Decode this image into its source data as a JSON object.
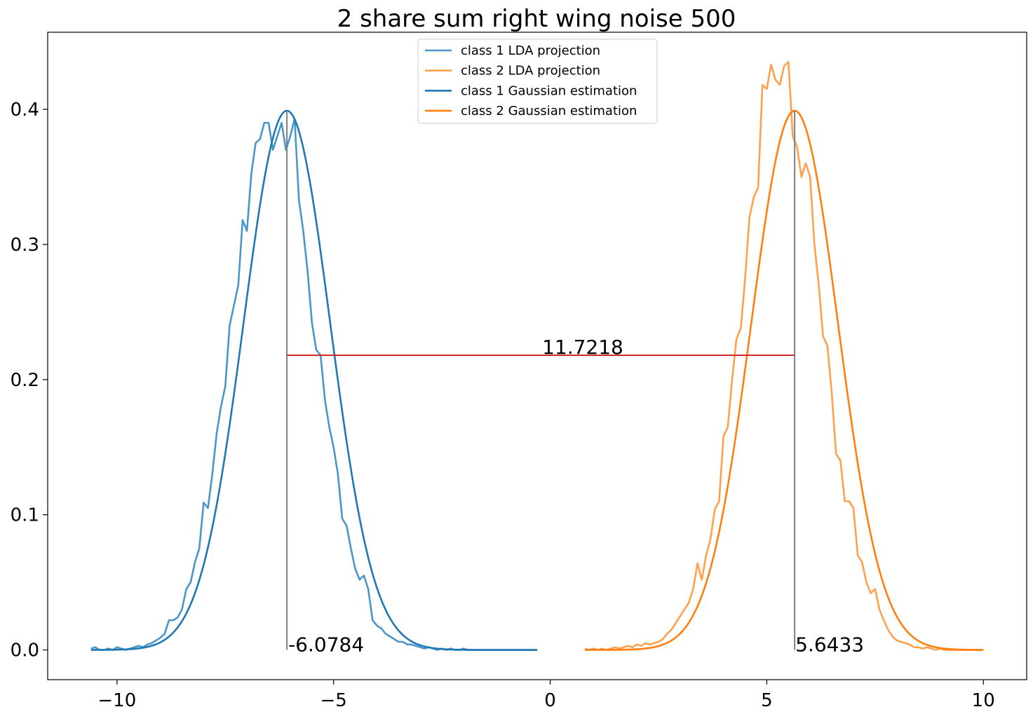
{
  "chart_data": {
    "type": "line",
    "title": "2 share sum right wing noise 500",
    "xlabel": "",
    "ylabel": "",
    "xlim": [
      -11.6,
      11.0
    ],
    "ylim": [
      -0.022,
      0.457
    ],
    "xticks": [
      -10,
      -5,
      0,
      5,
      10
    ],
    "xtick_labels": [
      "−10",
      "−5",
      "0",
      "5",
      "10"
    ],
    "yticks": [
      0.0,
      0.1,
      0.2,
      0.3,
      0.4
    ],
    "ytick_labels": [
      "0.0",
      "0.1",
      "0.2",
      "0.3",
      "0.4"
    ],
    "grid": false,
    "legend_position": "top-center",
    "series": [
      {
        "name": "class 1 LDA projection",
        "color": "#4a96c8",
        "kind": "empirical",
        "x": [
          -10.6,
          -10.5,
          -10.4,
          -10.3,
          -10.2,
          -10.1,
          -10.0,
          -9.9,
          -9.8,
          -9.7,
          -9.6,
          -9.5,
          -9.4,
          -9.3,
          -9.2,
          -9.1,
          -9.0,
          -8.9,
          -8.8,
          -8.7,
          -8.6,
          -8.5,
          -8.4,
          -8.3,
          -8.2,
          -8.1,
          -8.0,
          -7.9,
          -7.8,
          -7.7,
          -7.6,
          -7.5,
          -7.4,
          -7.3,
          -7.2,
          -7.1,
          -7.0,
          -6.9,
          -6.8,
          -6.7,
          -6.6,
          -6.5,
          -6.4,
          -6.3,
          -6.2,
          -6.1,
          -6.0,
          -5.9,
          -5.8,
          -5.7,
          -5.6,
          -5.5,
          -5.4,
          -5.3,
          -5.2,
          -5.1,
          -5.0,
          -4.9,
          -4.8,
          -4.7,
          -4.6,
          -4.5,
          -4.4,
          -4.3,
          -4.2,
          -4.1,
          -4.0,
          -3.9,
          -3.8,
          -3.7,
          -3.6,
          -3.5,
          -3.4,
          -3.3,
          -3.2,
          -3.1,
          -3.0,
          -2.9,
          -2.8,
          -2.7,
          -2.6,
          -2.5,
          -2.4,
          -2.3,
          -2.2,
          -2.1,
          -2.0,
          -1.9,
          -1.8,
          -1.7,
          -1.6,
          -1.5,
          -1.4,
          -1.3,
          -1.2,
          -1.1,
          -1.0,
          -0.9,
          -0.8,
          -0.7,
          -0.6,
          -0.5,
          -0.4,
          -0.3
        ],
        "y": [
          0.001,
          0.002,
          0.0,
          0.0,
          0.001,
          0.0,
          0.002,
          0.001,
          0.0,
          0.001,
          0.002,
          0.003,
          0.002,
          0.004,
          0.005,
          0.007,
          0.009,
          0.012,
          0.022,
          0.022,
          0.024,
          0.03,
          0.045,
          0.05,
          0.065,
          0.075,
          0.109,
          0.105,
          0.13,
          0.16,
          0.18,
          0.195,
          0.24,
          0.255,
          0.27,
          0.318,
          0.31,
          0.352,
          0.375,
          0.378,
          0.39,
          0.39,
          0.37,
          0.38,
          0.39,
          0.37,
          0.38,
          0.393,
          0.333,
          0.31,
          0.28,
          0.242,
          0.222,
          0.218,
          0.185,
          0.165,
          0.15,
          0.13,
          0.097,
          0.092,
          0.075,
          0.06,
          0.052,
          0.055,
          0.045,
          0.022,
          0.018,
          0.016,
          0.012,
          0.01,
          0.008,
          0.006,
          0.006,
          0.004,
          0.004,
          0.003,
          0.002,
          0.001,
          0.002,
          0.001,
          0.0,
          0.001,
          0.0,
          0.001,
          0.0,
          0.0,
          0.001,
          0.0,
          0.0,
          0.0,
          0.0,
          0.0,
          0.0,
          0.0,
          0.0,
          0.0,
          0.0,
          0.0,
          0.0,
          0.0,
          0.0,
          0.0,
          0.0,
          0.0
        ]
      },
      {
        "name": "class 2 LDA projection",
        "color": "#ffa04c",
        "kind": "empirical",
        "x": [
          0.8,
          0.9,
          1.0,
          1.1,
          1.2,
          1.3,
          1.4,
          1.5,
          1.6,
          1.7,
          1.8,
          1.9,
          2.0,
          2.1,
          2.2,
          2.3,
          2.4,
          2.5,
          2.6,
          2.7,
          2.8,
          2.9,
          3.0,
          3.1,
          3.2,
          3.3,
          3.4,
          3.5,
          3.6,
          3.7,
          3.8,
          3.9,
          4.0,
          4.1,
          4.2,
          4.3,
          4.4,
          4.5,
          4.6,
          4.7,
          4.8,
          4.9,
          5.0,
          5.1,
          5.2,
          5.3,
          5.4,
          5.5,
          5.6,
          5.7,
          5.8,
          5.9,
          6.0,
          6.1,
          6.2,
          6.3,
          6.4,
          6.5,
          6.6,
          6.7,
          6.8,
          6.9,
          7.0,
          7.1,
          7.2,
          7.3,
          7.4,
          7.5,
          7.6,
          7.7,
          7.8,
          7.9,
          8.0,
          8.1,
          8.2,
          8.3,
          8.4,
          8.5,
          8.6,
          8.7,
          8.8,
          8.9,
          9.0,
          9.1,
          9.2,
          9.3,
          9.4,
          9.5,
          9.6,
          9.7,
          9.8,
          9.9,
          10.0
        ],
        "y": [
          0.001,
          0.0,
          0.001,
          0.0,
          0.001,
          0.0,
          0.001,
          0.002,
          0.001,
          0.002,
          0.003,
          0.002,
          0.004,
          0.003,
          0.005,
          0.004,
          0.005,
          0.006,
          0.008,
          0.012,
          0.015,
          0.02,
          0.025,
          0.03,
          0.035,
          0.045,
          0.064,
          0.052,
          0.07,
          0.082,
          0.104,
          0.11,
          0.158,
          0.165,
          0.2,
          0.23,
          0.238,
          0.275,
          0.32,
          0.335,
          0.342,
          0.418,
          0.415,
          0.433,
          0.422,
          0.418,
          0.432,
          0.435,
          0.38,
          0.372,
          0.35,
          0.36,
          0.35,
          0.3,
          0.27,
          0.232,
          0.225,
          0.19,
          0.145,
          0.14,
          0.11,
          0.11,
          0.105,
          0.07,
          0.065,
          0.05,
          0.042,
          0.045,
          0.03,
          0.022,
          0.015,
          0.01,
          0.007,
          0.006,
          0.005,
          0.004,
          0.002,
          0.002,
          0.001,
          0.002,
          0.001,
          0.0,
          0.001,
          0.0,
          0.0,
          0.0,
          0.0,
          0.0,
          0.0,
          0.0,
          0.0,
          0.0,
          0.0
        ]
      },
      {
        "name": "class 1 Gaussian estimation",
        "color": "#1f77b4",
        "kind": "gaussian",
        "mean": -6.0784,
        "sigma": 1.0,
        "x_range": [
          -10.6,
          -0.3
        ]
      },
      {
        "name": "class 2 Gaussian estimation",
        "color": "#ff7f0e",
        "kind": "gaussian",
        "mean": 5.6433,
        "sigma": 1.0,
        "x_range": [
          0.8,
          10.0
        ]
      }
    ],
    "annotations": {
      "mean1_label": "-6.0784",
      "mean2_label": "5.6433",
      "distance_label": "11.7218",
      "mean1": -6.0784,
      "mean2": 5.6433,
      "distance_y": 0.218,
      "vline_color": "#808080",
      "hline_color": "#d62728"
    }
  }
}
